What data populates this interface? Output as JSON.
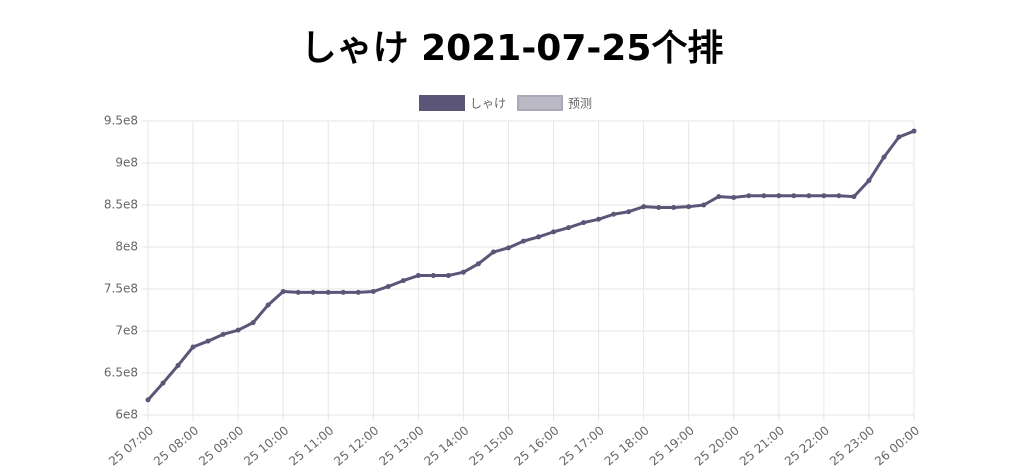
{
  "chart_data": {
    "type": "line",
    "title": "しゃけ 2021-07-25个排",
    "categories": [
      "25 07:00",
      null,
      null,
      "25 08:00",
      null,
      null,
      "25 09:00",
      null,
      null,
      "25 10:00",
      null,
      null,
      "25 11:00",
      null,
      null,
      "25 12:00",
      null,
      null,
      "25 13:00",
      null,
      null,
      "25 14:00",
      null,
      null,
      "25 15:00",
      null,
      null,
      "25 16:00",
      null,
      null,
      "25 17:00",
      null,
      null,
      "25 18:00",
      null,
      null,
      "25 19:00",
      null,
      null,
      "25 20:00",
      null,
      null,
      "25 21:00",
      null,
      null,
      "25 22:00",
      null,
      null,
      "25 23:00",
      null,
      null,
      "26 00:00"
    ],
    "series": [
      {
        "name": "しゃけ",
        "color": "#5b5677",
        "values": [
          618000000,
          638000000,
          659000000,
          681000000,
          688000000,
          696000000,
          701000000,
          710000000,
          731000000,
          747000000,
          746000000,
          746000000,
          746000000,
          746000000,
          746000000,
          747000000,
          753000000,
          760000000,
          766000000,
          766000000,
          766000000,
          770000000,
          780000000,
          794000000,
          799000000,
          807000000,
          812000000,
          818000000,
          823000000,
          829000000,
          833000000,
          839000000,
          842000000,
          848000000,
          847000000,
          847000000,
          848000000,
          850000000,
          860000000,
          859000000,
          861000000,
          861000000,
          861000000,
          861000000,
          861000000,
          861000000,
          861000000,
          860000000,
          879000000,
          907000000,
          931000000,
          938000000
        ]
      },
      {
        "name": "预测",
        "color": "#aaa8b8",
        "values": [
          null,
          null,
          null,
          null,
          null,
          null,
          null,
          null,
          null,
          null,
          null,
          null,
          null,
          null,
          null,
          null,
          null,
          null,
          null,
          null,
          null,
          null,
          null,
          null,
          null,
          null,
          null,
          null,
          null,
          null,
          null,
          null,
          null,
          null,
          null,
          null,
          null,
          null,
          null,
          null,
          null,
          null,
          null,
          null,
          null,
          null,
          null,
          null,
          null,
          null,
          null,
          null
        ]
      }
    ],
    "ylim": [
      600000000,
      950000000
    ],
    "yticks": [
      {
        "value": 600000000,
        "label": "6e8"
      },
      {
        "value": 650000000,
        "label": "6.5e8"
      },
      {
        "value": 700000000,
        "label": "7e8"
      },
      {
        "value": 750000000,
        "label": "7.5e8"
      },
      {
        "value": 800000000,
        "label": "8e8"
      },
      {
        "value": 850000000,
        "label": "8.5e8"
      },
      {
        "value": 900000000,
        "label": "9e8"
      },
      {
        "value": 950000000,
        "label": "9.5e8"
      }
    ],
    "grid": true
  }
}
